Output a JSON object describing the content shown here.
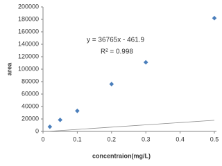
{
  "chart_data": {
    "type": "scatter",
    "x_label": "concentraion(mg/L)",
    "y_label": "area",
    "series": [
      {
        "name": "area",
        "color": "#4a7ebb",
        "x": [
          0.02,
          0.05,
          0.1,
          0.2,
          0.3,
          0.5
        ],
        "values": [
          7500,
          18500,
          33000,
          76000,
          111000,
          182000
        ]
      }
    ],
    "trendline": {
      "slope": 36765,
      "intercept": -461.9,
      "equation": "y = 36765x - 461.9",
      "r2_label": "R² = 0.998",
      "color": "#8c8c8c"
    },
    "xlim": [
      0,
      0.5
    ],
    "xticks": [
      0,
      0.1,
      0.2,
      0.3,
      0.4,
      0.5
    ],
    "ylim": [
      0,
      200000
    ],
    "yticks": [
      0,
      20000,
      40000,
      60000,
      80000,
      100000,
      120000,
      140000,
      160000,
      180000,
      200000
    ],
    "grid": false
  }
}
